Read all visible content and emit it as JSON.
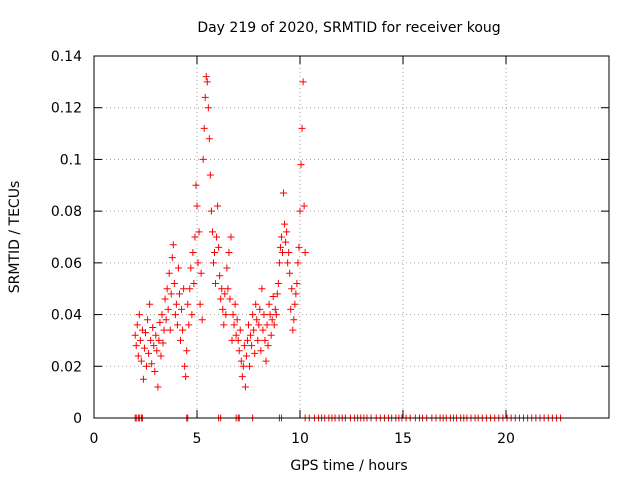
{
  "chart_data": {
    "type": "scatter",
    "title": "Day 219 of 2020, SRMTID for receiver koug",
    "xlabel": "GPS time / hours",
    "ylabel": "SRMTID / TECUs",
    "xlim": [
      0,
      25
    ],
    "ylim": [
      0,
      0.14
    ],
    "xticks": [
      0,
      5,
      10,
      15,
      20
    ],
    "xtick_labels": [
      "0",
      "5",
      "10",
      "15",
      "20"
    ],
    "yticks": [
      0,
      0.02,
      0.04,
      0.06,
      0.08,
      0.1,
      0.12,
      0.14
    ],
    "ytick_labels": [
      "0",
      "0.02",
      "0.04",
      "0.06",
      "0.08",
      "0.1",
      "0.12",
      "0.14"
    ],
    "grid": true,
    "marker": "+",
    "series": [
      {
        "name": "SRMTID",
        "color": "#ff0000",
        "points": [
          [
            2.0,
            0.032
          ],
          [
            2.05,
            0.028
          ],
          [
            2.1,
            0.036
          ],
          [
            2.15,
            0.024
          ],
          [
            2.2,
            0.04
          ],
          [
            2.25,
            0.03
          ],
          [
            2.3,
            0.022
          ],
          [
            2.35,
            0.034
          ],
          [
            2.4,
            0.015
          ],
          [
            2.45,
            0.027
          ],
          [
            2.5,
            0.033
          ],
          [
            2.55,
            0.02
          ],
          [
            2.6,
            0.038
          ],
          [
            2.65,
            0.025
          ],
          [
            2.7,
            0.044
          ],
          [
            2.75,
            0.03
          ],
          [
            2.8,
            0.021
          ],
          [
            2.85,
            0.035
          ],
          [
            2.9,
            0.028
          ],
          [
            2.95,
            0.018
          ],
          [
            3.0,
            0.032
          ],
          [
            3.05,
            0.026
          ],
          [
            3.1,
            0.012
          ],
          [
            3.15,
            0.03
          ],
          [
            3.2,
            0.037
          ],
          [
            3.25,
            0.024
          ],
          [
            3.3,
            0.04
          ],
          [
            3.35,
            0.029
          ],
          [
            3.4,
            0.034
          ],
          [
            3.45,
            0.046
          ],
          [
            3.5,
            0.038
          ],
          [
            3.55,
            0.05
          ],
          [
            3.6,
            0.042
          ],
          [
            3.65,
            0.056
          ],
          [
            3.7,
            0.034
          ],
          [
            3.75,
            0.048
          ],
          [
            3.8,
            0.062
          ],
          [
            3.85,
            0.067
          ],
          [
            3.9,
            0.052
          ],
          [
            3.95,
            0.04
          ],
          [
            4.0,
            0.044
          ],
          [
            4.05,
            0.036
          ],
          [
            4.1,
            0.058
          ],
          [
            4.15,
            0.048
          ],
          [
            4.2,
            0.03
          ],
          [
            4.25,
            0.042
          ],
          [
            4.3,
            0.034
          ],
          [
            4.35,
            0.05
          ],
          [
            4.4,
            0.02
          ],
          [
            4.45,
            0.016
          ],
          [
            4.5,
            0.026
          ],
          [
            4.55,
            0.044
          ],
          [
            4.6,
            0.036
          ],
          [
            4.65,
            0.05
          ],
          [
            4.7,
            0.058
          ],
          [
            4.75,
            0.04
          ],
          [
            4.8,
            0.064
          ],
          [
            4.85,
            0.052
          ],
          [
            4.9,
            0.07
          ],
          [
            4.95,
            0.09
          ],
          [
            5.0,
            0.082
          ],
          [
            5.05,
            0.06
          ],
          [
            5.1,
            0.072
          ],
          [
            5.15,
            0.044
          ],
          [
            5.2,
            0.056
          ],
          [
            5.25,
            0.038
          ],
          [
            5.3,
            0.1
          ],
          [
            5.35,
            0.112
          ],
          [
            5.4,
            0.124
          ],
          [
            5.45,
            0.132
          ],
          [
            5.5,
            0.13
          ],
          [
            5.55,
            0.12
          ],
          [
            5.6,
            0.108
          ],
          [
            5.65,
            0.094
          ],
          [
            5.7,
            0.08
          ],
          [
            5.75,
            0.072
          ],
          [
            5.8,
            0.06
          ],
          [
            5.85,
            0.064
          ],
          [
            5.9,
            0.052
          ],
          [
            5.95,
            0.07
          ],
          [
            6.0,
            0.082
          ],
          [
            6.05,
            0.066
          ],
          [
            6.1,
            0.055
          ],
          [
            6.15,
            0.046
          ],
          [
            6.2,
            0.05
          ],
          [
            6.25,
            0.042
          ],
          [
            6.3,
            0.036
          ],
          [
            6.35,
            0.048
          ],
          [
            6.4,
            0.04
          ],
          [
            6.45,
            0.058
          ],
          [
            6.5,
            0.05
          ],
          [
            6.55,
            0.064
          ],
          [
            6.6,
            0.046
          ],
          [
            6.65,
            0.07
          ],
          [
            6.7,
            0.03
          ],
          [
            6.75,
            0.04
          ],
          [
            6.8,
            0.036
          ],
          [
            6.85,
            0.044
          ],
          [
            6.9,
            0.032
          ],
          [
            6.95,
            0.038
          ],
          [
            7.0,
            0.03
          ],
          [
            7.05,
            0.026
          ],
          [
            7.1,
            0.034
          ],
          [
            7.15,
            0.022
          ],
          [
            7.2,
            0.016
          ],
          [
            7.25,
            0.02
          ],
          [
            7.3,
            0.028
          ],
          [
            7.35,
            0.012
          ],
          [
            7.4,
            0.024
          ],
          [
            7.45,
            0.03
          ],
          [
            7.5,
            0.036
          ],
          [
            7.55,
            0.02
          ],
          [
            7.6,
            0.032
          ],
          [
            7.65,
            0.028
          ],
          [
            7.7,
            0.04
          ],
          [
            7.75,
            0.034
          ],
          [
            7.8,
            0.025
          ],
          [
            7.85,
            0.044
          ],
          [
            7.9,
            0.038
          ],
          [
            7.95,
            0.03
          ],
          [
            8.0,
            0.036
          ],
          [
            8.05,
            0.042
          ],
          [
            8.1,
            0.026
          ],
          [
            8.15,
            0.05
          ],
          [
            8.2,
            0.034
          ],
          [
            8.25,
            0.04
          ],
          [
            8.3,
            0.03
          ],
          [
            8.35,
            0.022
          ],
          [
            8.4,
            0.036
          ],
          [
            8.45,
            0.028
          ],
          [
            8.5,
            0.044
          ],
          [
            8.55,
            0.04
          ],
          [
            8.6,
            0.032
          ],
          [
            8.65,
            0.038
          ],
          [
            8.7,
            0.047
          ],
          [
            8.75,
            0.036
          ],
          [
            8.8,
            0.042
          ],
          [
            8.85,
            0.04
          ],
          [
            8.9,
            0.048
          ],
          [
            8.95,
            0.052
          ],
          [
            9.0,
            0.06
          ],
          [
            9.05,
            0.066
          ],
          [
            9.1,
            0.07
          ],
          [
            9.15,
            0.064
          ],
          [
            9.2,
            0.087
          ],
          [
            9.25,
            0.075
          ],
          [
            9.3,
            0.068
          ],
          [
            9.35,
            0.072
          ],
          [
            9.4,
            0.06
          ],
          [
            9.45,
            0.064
          ],
          [
            9.5,
            0.056
          ],
          [
            9.55,
            0.042
          ],
          [
            9.6,
            0.05
          ],
          [
            9.65,
            0.034
          ],
          [
            9.7,
            0.038
          ],
          [
            9.75,
            0.044
          ],
          [
            9.8,
            0.048
          ],
          [
            9.85,
            0.052
          ],
          [
            9.9,
            0.06
          ],
          [
            9.95,
            0.066
          ],
          [
            10.0,
            0.08
          ],
          [
            10.05,
            0.098
          ],
          [
            10.1,
            0.112
          ],
          [
            10.15,
            0.13
          ],
          [
            10.2,
            0.082
          ],
          [
            10.25,
            0.064
          ]
        ]
      }
    ],
    "zero_points": {
      "y": 0,
      "x": [
        2.0,
        2.05,
        2.15,
        2.2,
        2.3,
        2.35,
        4.5,
        4.55,
        6.05,
        6.15,
        6.9,
        7.0,
        7.05,
        7.7,
        9.0,
        9.1,
        10.25,
        10.45,
        10.7,
        10.9,
        11.05,
        11.2,
        11.4,
        11.55,
        11.7,
        11.9,
        12.05,
        12.2,
        12.45,
        12.65,
        12.8,
        12.95,
        13.1,
        13.25,
        13.45,
        13.7,
        13.9,
        14.1,
        14.3,
        14.45,
        14.65,
        14.8,
        14.95,
        15.15,
        15.35,
        15.6,
        15.8,
        15.95,
        16.15,
        16.4,
        16.6,
        16.8,
        16.95,
        17.1,
        17.3,
        17.45,
        17.6,
        17.8,
        17.95,
        18.1,
        18.3,
        18.5,
        18.65,
        18.85,
        19.05,
        19.25,
        19.45,
        19.65,
        19.85,
        20.05,
        20.25,
        20.45,
        20.65,
        20.85,
        21.05,
        21.25,
        21.45,
        21.65,
        21.85,
        22.05,
        22.25,
        22.45,
        22.65
      ]
    }
  }
}
